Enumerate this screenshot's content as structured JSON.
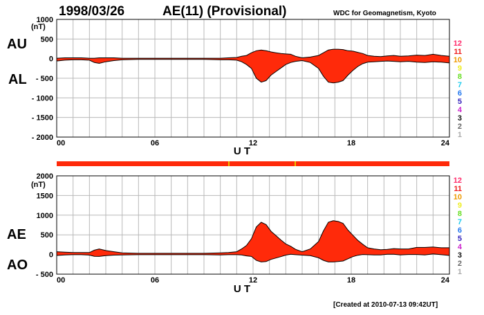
{
  "header": {
    "date": "1998/03/26",
    "title": "AE(11) (Provisional)",
    "credit": "WDC for Geomagnetism, Kyoto"
  },
  "footer": {
    "created": "[Created at 2010-07-13 09:42UT]"
  },
  "legend": {
    "items": [
      {
        "label": "12",
        "color": "#ff2a6a"
      },
      {
        "label": "11",
        "color": "#ee1a1a"
      },
      {
        "label": "10",
        "color": "#ee9a00"
      },
      {
        "label": "9",
        "color": "#eeee22"
      },
      {
        "label": "8",
        "color": "#66dd22"
      },
      {
        "label": "7",
        "color": "#22ccee"
      },
      {
        "label": "6",
        "color": "#2277ee"
      },
      {
        "label": "5",
        "color": "#3322bb"
      },
      {
        "label": "4",
        "color": "#cc22cc"
      },
      {
        "label": "3",
        "color": "#111111"
      },
      {
        "label": "2",
        "color": "#666666"
      },
      {
        "label": "1",
        "color": "#aaaaaa"
      }
    ]
  },
  "colors": {
    "fill": "#ff2a0a",
    "outline": "#000000",
    "grid": "#b8b8b8",
    "coverage_bar": "#ff2a0a",
    "coverage_mark": "#e8c400"
  },
  "chart_data": [
    {
      "type": "area",
      "name": "AU-AL",
      "labels_left": {
        "upper": "AU",
        "lower": "AL"
      },
      "ylabel": "(nT)",
      "xlabel": "U T",
      "xlim": [
        0,
        24
      ],
      "ylim": [
        -2000,
        1000
      ],
      "yticks": [
        1000,
        500,
        0,
        -500,
        -1000,
        -1500,
        -2000
      ],
      "ytick_labels": [
        "1000",
        "500",
        "0",
        "- 500",
        "- 1000",
        "- 1500",
        "- 2000"
      ],
      "xticks": [
        0,
        6,
        12,
        18,
        24
      ],
      "xtick_labels": [
        "00",
        "06",
        "12",
        "18",
        "24"
      ],
      "grid": true,
      "x": [
        0,
        0.5,
        1,
        1.5,
        2,
        2.3,
        2.6,
        3,
        3.5,
        4,
        5,
        6,
        7,
        8,
        9,
        10,
        10.5,
        11,
        11.3,
        11.6,
        11.9,
        12.2,
        12.5,
        12.8,
        13.1,
        13.4,
        13.7,
        14.0,
        14.3,
        14.6,
        15.0,
        15.5,
        16.0,
        16.3,
        16.6,
        16.9,
        17.2,
        17.5,
        17.8,
        18.1,
        18.4,
        18.7,
        19.0,
        19.4,
        19.8,
        20.2,
        20.6,
        21.0,
        21.5,
        22.0,
        22.5,
        23.0,
        23.5,
        24
      ],
      "series": [
        {
          "name": "AU",
          "values": [
            10,
            20,
            20,
            20,
            10,
            10,
            20,
            20,
            20,
            10,
            10,
            10,
            10,
            10,
            10,
            10,
            20,
            30,
            60,
            80,
            150,
            200,
            220,
            200,
            170,
            150,
            130,
            120,
            110,
            60,
            20,
            40,
            80,
            150,
            220,
            240,
            240,
            230,
            200,
            190,
            160,
            130,
            80,
            60,
            50,
            70,
            80,
            60,
            70,
            90,
            80,
            110,
            80,
            60
          ]
        },
        {
          "name": "AL",
          "values": [
            -60,
            -40,
            -30,
            -30,
            -40,
            -100,
            -120,
            -80,
            -50,
            -30,
            -20,
            -20,
            -20,
            -20,
            -20,
            -30,
            -30,
            -40,
            -80,
            -150,
            -250,
            -500,
            -600,
            -560,
            -420,
            -330,
            -240,
            -150,
            -100,
            -70,
            -50,
            -100,
            -250,
            -450,
            -600,
            -620,
            -600,
            -560,
            -420,
            -300,
            -200,
            -130,
            -90,
            -80,
            -70,
            -60,
            -70,
            -80,
            -70,
            -90,
            -100,
            -80,
            -90,
            -110
          ]
        }
      ]
    },
    {
      "type": "area",
      "name": "AE-AO",
      "labels_left": {
        "upper": "AE",
        "lower": "AO"
      },
      "ylabel": "(nT)",
      "xlabel": "U T",
      "xlim": [
        0,
        24
      ],
      "ylim": [
        -500,
        2000
      ],
      "yticks": [
        2000,
        1500,
        1000,
        500,
        0,
        -500
      ],
      "ytick_labels": [
        "2000",
        "1500",
        "1000",
        "500",
        "0",
        "- 500"
      ],
      "xticks": [
        0,
        6,
        12,
        18,
        24
      ],
      "xtick_labels": [
        "00",
        "06",
        "12",
        "18",
        "24"
      ],
      "grid": true,
      "x": [
        0,
        0.5,
        1,
        1.5,
        2,
        2.3,
        2.6,
        3,
        3.5,
        4,
        5,
        6,
        7,
        8,
        9,
        10,
        10.5,
        11,
        11.3,
        11.6,
        11.9,
        12.2,
        12.5,
        12.8,
        13.1,
        13.4,
        13.7,
        14.0,
        14.3,
        14.6,
        15.0,
        15.5,
        16.0,
        16.3,
        16.6,
        16.9,
        17.2,
        17.5,
        17.8,
        18.1,
        18.4,
        18.7,
        19.0,
        19.4,
        19.8,
        20.2,
        20.6,
        21.0,
        21.5,
        22.0,
        22.5,
        23.0,
        23.5,
        24
      ],
      "series": [
        {
          "name": "AE",
          "values": [
            70,
            60,
            50,
            50,
            50,
            110,
            140,
            100,
            70,
            40,
            30,
            30,
            30,
            30,
            30,
            40,
            50,
            70,
            140,
            230,
            400,
            700,
            820,
            760,
            590,
            480,
            370,
            270,
            210,
            130,
            70,
            140,
            330,
            600,
            820,
            860,
            840,
            790,
            620,
            490,
            360,
            260,
            170,
            140,
            120,
            130,
            150,
            140,
            140,
            180,
            180,
            190,
            170,
            170
          ]
        },
        {
          "name": "AO",
          "values": [
            -25,
            -10,
            -5,
            -5,
            -15,
            -45,
            -50,
            -30,
            -15,
            -10,
            -5,
            -5,
            -5,
            -5,
            -5,
            -10,
            -5,
            -5,
            -10,
            -35,
            -50,
            -150,
            -190,
            -180,
            -125,
            -90,
            -55,
            -15,
            5,
            -5,
            -15,
            -30,
            -85,
            -150,
            -190,
            -190,
            -180,
            -165,
            -110,
            -55,
            -20,
            0,
            -5,
            -10,
            -10,
            5,
            5,
            -10,
            0,
            0,
            -10,
            15,
            -5,
            -25
          ]
        }
      ]
    }
  ]
}
